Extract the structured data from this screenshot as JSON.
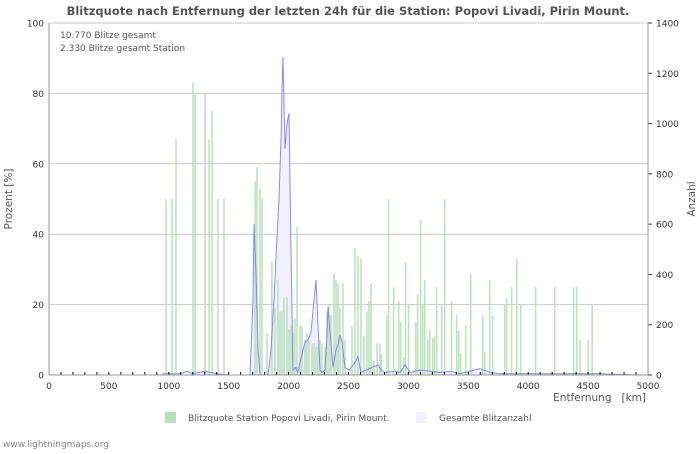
{
  "chart_data": {
    "type": "bar",
    "title": "Blitzquote nach Entfernung der letzten 24h für die Station: Popovi Livadi, Pirin Mount.",
    "annotations": [
      "10.770 Blitze gesamt",
      "2.330 Blitze gesamt Station"
    ],
    "xlabel": "Entfernung   [km]",
    "ylabel": "Prozent   [%]",
    "y2label": "Anzahl",
    "xlim": [
      0,
      5000
    ],
    "ylim": [
      0,
      100
    ],
    "y2lim": [
      0,
      1400
    ],
    "xticks": [
      "0",
      "500",
      "1000",
      "1500",
      "2000",
      "2500",
      "3000",
      "3500",
      "4000",
      "4500",
      "5000"
    ],
    "yticks": [
      "0",
      "20",
      "40",
      "60",
      "80",
      "100"
    ],
    "y2ticks": [
      "0",
      "200",
      "400",
      "600",
      "800",
      "1000",
      "1200",
      "1400"
    ],
    "grid": true,
    "legend_position": "bottom",
    "colors": {
      "bar": "#b8e0b8",
      "line": "#7777ee",
      "area": "#f0f0ff"
    },
    "series": [
      {
        "name": "Blitzquote Station Popovi Livadi, Pirin Mount.",
        "axis": "left",
        "kind": "bar",
        "points": [
          [
            977,
            50
          ],
          [
            1027,
            50
          ],
          [
            1060,
            67
          ],
          [
            1202,
            83
          ],
          [
            1219,
            80
          ],
          [
            1302,
            80
          ],
          [
            1336,
            67
          ],
          [
            1361,
            75
          ],
          [
            1411,
            50
          ],
          [
            1461,
            50
          ],
          [
            1720,
            55
          ],
          [
            1736,
            59
          ],
          [
            1761,
            53
          ],
          [
            1778,
            50
          ],
          [
            1820,
            12
          ],
          [
            1861,
            32
          ],
          [
            1886,
            19
          ],
          [
            1911,
            27
          ],
          [
            1928,
            18
          ],
          [
            1945,
            18
          ],
          [
            1962,
            22
          ],
          [
            1987,
            22
          ],
          [
            2003,
            13
          ],
          [
            2020,
            14
          ],
          [
            2037,
            12
          ],
          [
            2053,
            16
          ],
          [
            2070,
            42
          ],
          [
            2095,
            14
          ],
          [
            2112,
            14
          ],
          [
            2137,
            10
          ],
          [
            2153,
            12
          ],
          [
            2170,
            10
          ],
          [
            2195,
            9
          ],
          [
            2212,
            9
          ],
          [
            2229,
            8
          ],
          [
            2245,
            8
          ],
          [
            2262,
            10
          ],
          [
            2279,
            9
          ],
          [
            2304,
            8
          ],
          [
            2320,
            18
          ],
          [
            2337,
            20
          ],
          [
            2354,
            17
          ],
          [
            2379,
            29
          ],
          [
            2396,
            27
          ],
          [
            2412,
            26
          ],
          [
            2429,
            19
          ],
          [
            2454,
            26
          ],
          [
            2471,
            10
          ],
          [
            2529,
            14
          ],
          [
            2554,
            36
          ],
          [
            2579,
            34
          ],
          [
            2604,
            33
          ],
          [
            2629,
            11
          ],
          [
            2654,
            18
          ],
          [
            2671,
            21
          ],
          [
            2688,
            26
          ],
          [
            2713,
            4
          ],
          [
            2738,
            9
          ],
          [
            2763,
            9
          ],
          [
            2774,
            6
          ],
          [
            2819,
            17
          ],
          [
            2835,
            50
          ],
          [
            2877,
            25
          ],
          [
            2919,
            21
          ],
          [
            2936,
            15
          ],
          [
            2961,
            5
          ],
          [
            2977,
            32
          ],
          [
            3002,
            20
          ],
          [
            3061,
            15
          ],
          [
            3077,
            23
          ],
          [
            3102,
            44
          ],
          [
            3119,
            20
          ],
          [
            3136,
            27
          ],
          [
            3161,
            10
          ],
          [
            3178,
            13
          ],
          [
            3203,
            10.5
          ],
          [
            3219,
            11
          ],
          [
            3236,
            25
          ],
          [
            3278,
            20
          ],
          [
            3303,
            50
          ],
          [
            3361,
            21
          ],
          [
            3403,
            17
          ],
          [
            3420,
            12.5
          ],
          [
            3436,
            6
          ],
          [
            3478,
            14
          ],
          [
            3520,
            28.7
          ],
          [
            3620,
            17
          ],
          [
            3637,
            6.5
          ],
          [
            3679,
            27
          ],
          [
            3703,
            17
          ],
          [
            3804,
            20
          ],
          [
            3820,
            22
          ],
          [
            3862,
            25
          ],
          [
            3904,
            33
          ],
          [
            3937,
            20
          ],
          [
            4062,
            25
          ],
          [
            4221,
            25
          ],
          [
            4380,
            25
          ],
          [
            4405,
            25
          ],
          [
            4432,
            10
          ],
          [
            4499,
            10
          ],
          [
            4533,
            20
          ]
        ]
      },
      {
        "name": "Gesamte Blitzanzahl",
        "axis": "right",
        "kind": "area",
        "points": [
          [
            0,
            0
          ],
          [
            940,
            0
          ],
          [
            950,
            5
          ],
          [
            1100,
            5
          ],
          [
            1150,
            15
          ],
          [
            1200,
            5
          ],
          [
            1300,
            15
          ],
          [
            1400,
            5
          ],
          [
            1500,
            0
          ],
          [
            1678,
            0
          ],
          [
            1703,
            300
          ],
          [
            1711,
            600
          ],
          [
            1728,
            400
          ],
          [
            1745,
            100
          ],
          [
            1761,
            0
          ],
          [
            1828,
            0
          ],
          [
            1853,
            100
          ],
          [
            1878,
            300
          ],
          [
            1903,
            550
          ],
          [
            1920,
            700
          ],
          [
            1937,
            950
          ],
          [
            1945,
            1130
          ],
          [
            1953,
            1265
          ],
          [
            1970,
            900
          ],
          [
            1987,
            1000
          ],
          [
            2003,
            1040
          ],
          [
            2020,
            500
          ],
          [
            2037,
            20
          ],
          [
            2062,
            30
          ],
          [
            2078,
            10
          ],
          [
            2095,
            50
          ],
          [
            2137,
            130
          ],
          [
            2162,
            140
          ],
          [
            2187,
            170
          ],
          [
            2212,
            300
          ],
          [
            2229,
            378
          ],
          [
            2245,
            200
          ],
          [
            2262,
            20
          ],
          [
            2279,
            10
          ],
          [
            2304,
            20
          ],
          [
            2320,
            150
          ],
          [
            2329,
            270
          ],
          [
            2345,
            180
          ],
          [
            2370,
            30
          ],
          [
            2396,
            100
          ],
          [
            2412,
            120
          ],
          [
            2429,
            160
          ],
          [
            2446,
            130
          ],
          [
            2471,
            30
          ],
          [
            2504,
            20
          ],
          [
            2554,
            50
          ],
          [
            2579,
            72
          ],
          [
            2604,
            10
          ],
          [
            2646,
            20
          ],
          [
            2696,
            30
          ],
          [
            2746,
            40
          ],
          [
            2771,
            20
          ],
          [
            2805,
            10
          ],
          [
            2888,
            15
          ],
          [
            2930,
            10
          ],
          [
            2972,
            40
          ],
          [
            3013,
            10
          ],
          [
            3097,
            20
          ],
          [
            3180,
            15
          ],
          [
            3264,
            10
          ],
          [
            3347,
            15
          ],
          [
            3431,
            5
          ],
          [
            3598,
            25
          ],
          [
            3681,
            10
          ],
          [
            3765,
            5
          ],
          [
            3931,
            5
          ],
          [
            4599,
            5
          ],
          [
            4933,
            0
          ],
          [
            5000,
            0
          ]
        ]
      }
    ]
  },
  "footer": {
    "watermark": "www.lightningmaps.org"
  }
}
